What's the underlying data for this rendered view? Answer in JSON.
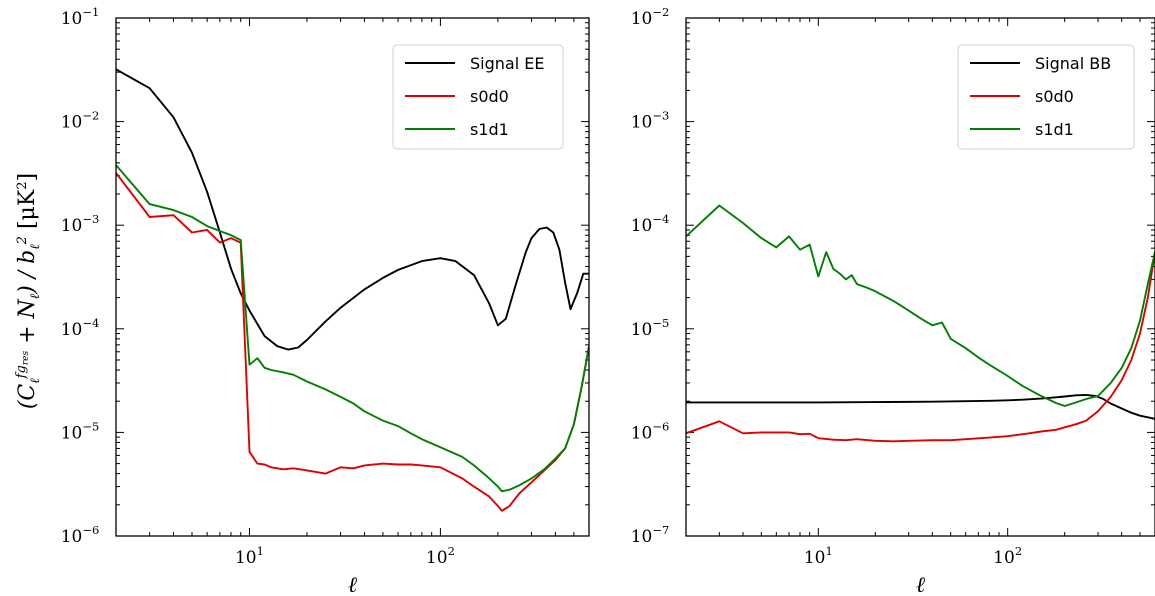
{
  "figure": {
    "ylabel": "(C_ℓ^{fg_res} + N_ℓ) / b_ℓ²  [μK²]"
  },
  "chart_data": [
    {
      "type": "line",
      "xscale": "log",
      "yscale": "log",
      "xlim": [
        2,
        600
      ],
      "ylim": [
        1e-06,
        0.1
      ],
      "xlabel": "ℓ",
      "grid": false,
      "legend_position": "top-right",
      "x_ticks": [
        {
          "base": "10",
          "exp": "1",
          "value": 10
        },
        {
          "base": "10",
          "exp": "2",
          "value": 100
        }
      ],
      "y_ticks": [
        {
          "base": "10",
          "exp": "−6",
          "value": 1e-06
        },
        {
          "base": "10",
          "exp": "−5",
          "value": 1e-05
        },
        {
          "base": "10",
          "exp": "−4",
          "value": 0.0001
        },
        {
          "base": "10",
          "exp": "−3",
          "value": 0.001
        },
        {
          "base": "10",
          "exp": "−2",
          "value": 0.01
        },
        {
          "base": "10",
          "exp": "−1",
          "value": 0.1
        }
      ],
      "series": [
        {
          "name": "Signal EE",
          "color": "#000000",
          "x": [
            2,
            3,
            4,
            5,
            6,
            7,
            8,
            9,
            10,
            12,
            14,
            16,
            18,
            20,
            25,
            30,
            40,
            50,
            60,
            80,
            100,
            120,
            150,
            180,
            200,
            220,
            250,
            280,
            300,
            330,
            360,
            390,
            420,
            450,
            480,
            520,
            560,
            600
          ],
          "y": [
            0.032,
            0.021,
            0.011,
            0.005,
            0.0021,
            0.00085,
            0.00038,
            0.00022,
            0.00015,
            8.5e-05,
            6.8e-05,
            6.3e-05,
            6.6e-05,
            7.8e-05,
            0.000118,
            0.00016,
            0.00024,
            0.00031,
            0.00037,
            0.00045,
            0.00048,
            0.00045,
            0.00033,
            0.000175,
            0.000108,
            0.000125,
            0.00028,
            0.00055,
            0.00075,
            0.00092,
            0.00095,
            0.00085,
            0.00058,
            0.00028,
            0.000155,
            0.00022,
            0.00034,
            0.00034
          ]
        },
        {
          "name": "s0d0",
          "color": "#e00000",
          "x": [
            2,
            3,
            4,
            5,
            6,
            7,
            8,
            9,
            10,
            11,
            12,
            13,
            15,
            17,
            20,
            25,
            30,
            35,
            40,
            50,
            60,
            70,
            80,
            100,
            130,
            150,
            180,
            200,
            210,
            230,
            260,
            300,
            350,
            400,
            450,
            500,
            550,
            600
          ],
          "y": [
            0.0032,
            0.0012,
            0.00125,
            0.00085,
            0.0009,
            0.00068,
            0.00075,
            0.00068,
            6.5e-06,
            5e-06,
            4.9e-06,
            4.6e-06,
            4.4e-06,
            4.5e-06,
            4.3e-06,
            4e-06,
            4.6e-06,
            4.5e-06,
            4.8e-06,
            5e-06,
            4.9e-06,
            4.9e-06,
            4.8e-06,
            4.6e-06,
            3.6e-06,
            3e-06,
            2.4e-06,
            1.95e-06,
            1.75e-06,
            1.95e-06,
            2.6e-06,
            3.3e-06,
            4.3e-06,
            5.4e-06,
            7e-06,
            1.2e-05,
            2.8e-05,
            6.8e-05
          ]
        },
        {
          "name": "s1d1",
          "color": "#008000",
          "x": [
            2,
            3,
            4,
            5,
            6,
            7,
            8,
            9,
            10,
            11,
            12,
            13,
            15,
            17,
            20,
            25,
            30,
            35,
            40,
            50,
            60,
            70,
            80,
            100,
            130,
            150,
            180,
            200,
            210,
            230,
            260,
            300,
            350,
            400,
            450,
            500,
            550,
            600
          ],
          "y": [
            0.0038,
            0.0016,
            0.0014,
            0.0012,
            0.00098,
            0.00088,
            0.0008,
            0.00072,
            4.5e-05,
            5.2e-05,
            4.2e-05,
            4e-05,
            3.8e-05,
            3.6e-05,
            3.1e-05,
            2.6e-05,
            2.2e-05,
            1.9e-05,
            1.6e-05,
            1.3e-05,
            1.15e-05,
            9.8e-06,
            8.6e-06,
            7.2e-06,
            5.8e-06,
            4.8e-06,
            3.6e-06,
            3e-06,
            2.7e-06,
            2.8e-06,
            3.1e-06,
            3.6e-06,
            4.4e-06,
            5.6e-06,
            7e-06,
            1.2e-05,
            2.8e-05,
            6.8e-05
          ]
        }
      ]
    },
    {
      "type": "line",
      "xscale": "log",
      "yscale": "log",
      "xlim": [
        2,
        600
      ],
      "ylim": [
        1e-07,
        0.01
      ],
      "xlabel": "ℓ",
      "grid": false,
      "legend_position": "top-right",
      "x_ticks": [
        {
          "base": "10",
          "exp": "1",
          "value": 10
        },
        {
          "base": "10",
          "exp": "2",
          "value": 100
        }
      ],
      "y_ticks": [
        {
          "base": "10",
          "exp": "−7",
          "value": 1e-07
        },
        {
          "base": "10",
          "exp": "−6",
          "value": 1e-06
        },
        {
          "base": "10",
          "exp": "−5",
          "value": 1e-05
        },
        {
          "base": "10",
          "exp": "−4",
          "value": 0.0001
        },
        {
          "base": "10",
          "exp": "−3",
          "value": 0.001
        },
        {
          "base": "10",
          "exp": "−2",
          "value": 0.01
        }
      ],
      "series": [
        {
          "name": "Signal BB",
          "color": "#000000",
          "x": [
            2,
            5,
            10,
            20,
            40,
            60,
            80,
            100,
            120,
            150,
            180,
            200,
            230,
            260,
            290,
            320,
            350,
            400,
            450,
            500,
            550,
            600
          ],
          "y": [
            1.95e-06,
            1.95e-06,
            1.95e-06,
            1.96e-06,
            1.98e-06,
            2e-06,
            2.02e-06,
            2.04e-06,
            2.07e-06,
            2.12e-06,
            2.18e-06,
            2.22e-06,
            2.28e-06,
            2.3e-06,
            2.25e-06,
            2.1e-06,
            1.9e-06,
            1.7e-06,
            1.55e-06,
            1.45e-06,
            1.4e-06,
            1.35e-06
          ]
        },
        {
          "name": "s0d0",
          "color": "#e00000",
          "x": [
            2,
            3,
            4,
            5,
            6,
            7,
            8,
            9,
            10,
            12,
            14,
            16,
            20,
            25,
            30,
            40,
            50,
            60,
            80,
            100,
            130,
            150,
            180,
            200,
            230,
            260,
            300,
            350,
            400,
            450,
            500,
            550,
            600
          ],
          "y": [
            9.8e-07,
            1.28e-06,
            9.8e-07,
            1e-06,
            1e-06,
            1e-06,
            9.6e-07,
            9.7e-07,
            8.8e-07,
            8.5e-07,
            8.4e-07,
            8.6e-07,
            8.3e-07,
            8.2e-07,
            8.3e-07,
            8.4e-07,
            8.4e-07,
            8.6e-07,
            8.9e-07,
            9.2e-07,
            9.8e-07,
            1.02e-06,
            1.06e-06,
            1.12e-06,
            1.2e-06,
            1.3e-06,
            1.6e-06,
            2.2e-06,
            3.2e-06,
            5e-06,
            9e-06,
            2e-05,
            5.5e-05
          ]
        },
        {
          "name": "s1d1",
          "color": "#008000",
          "x": [
            2,
            3,
            4,
            5,
            6,
            7,
            8,
            9,
            10,
            11,
            12,
            13,
            14,
            15,
            16,
            18,
            20,
            25,
            30,
            35,
            40,
            45,
            50,
            60,
            70,
            80,
            100,
            120,
            150,
            180,
            200,
            230,
            260,
            300,
            350,
            400,
            450,
            500,
            550,
            600
          ],
          "y": [
            7.8e-05,
            0.000155,
            0.000105,
            7.5e-05,
            6.1e-05,
            7.8e-05,
            5.8e-05,
            6.5e-05,
            3.2e-05,
            5.5e-05,
            3.8e-05,
            3.4e-05,
            3e-05,
            3.3e-05,
            2.7e-05,
            2.5e-05,
            2.3e-05,
            1.85e-05,
            1.5e-05,
            1.25e-05,
            1.08e-05,
            1.15e-05,
            8e-06,
            6.5e-06,
            5.3e-06,
            4.5e-06,
            3.5e-06,
            2.8e-06,
            2.25e-06,
            1.92e-06,
            1.8e-06,
            1.95e-06,
            2.1e-06,
            2.25e-06,
            3e-06,
            4.2e-06,
            6.5e-06,
            1.2e-05,
            2.7e-05,
            5.5e-05
          ]
        }
      ]
    }
  ]
}
